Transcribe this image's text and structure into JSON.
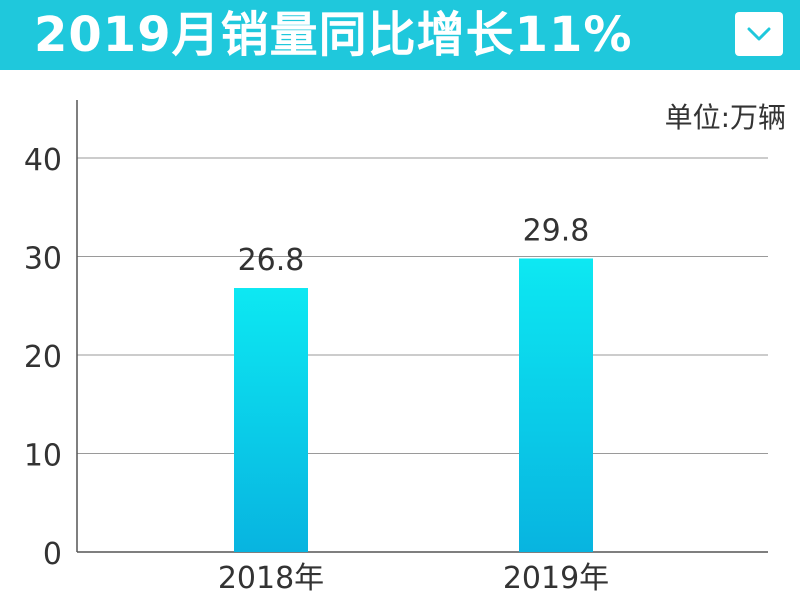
{
  "header": {
    "title": "2019月销量同比增长11%",
    "dropdown_icon": "chevron-down-icon"
  },
  "unit_label": "单位:万辆",
  "colors": {
    "title_bar": "#1fc8dc",
    "bar_top": "#0de8f2",
    "bar_bottom": "#08b4e0",
    "grid": "#9a9a9a"
  },
  "chart_data": {
    "type": "bar",
    "categories": [
      "2018年",
      "2019年"
    ],
    "values": [
      26.8,
      29.8
    ],
    "data_labels": [
      "26.8",
      "29.8"
    ],
    "ylim": [
      0,
      45
    ],
    "yticks": [
      0,
      10,
      20,
      30,
      40
    ],
    "ytick_labels": [
      "0",
      "10",
      "20",
      "30",
      "40"
    ],
    "grid": true,
    "legend": "none"
  }
}
